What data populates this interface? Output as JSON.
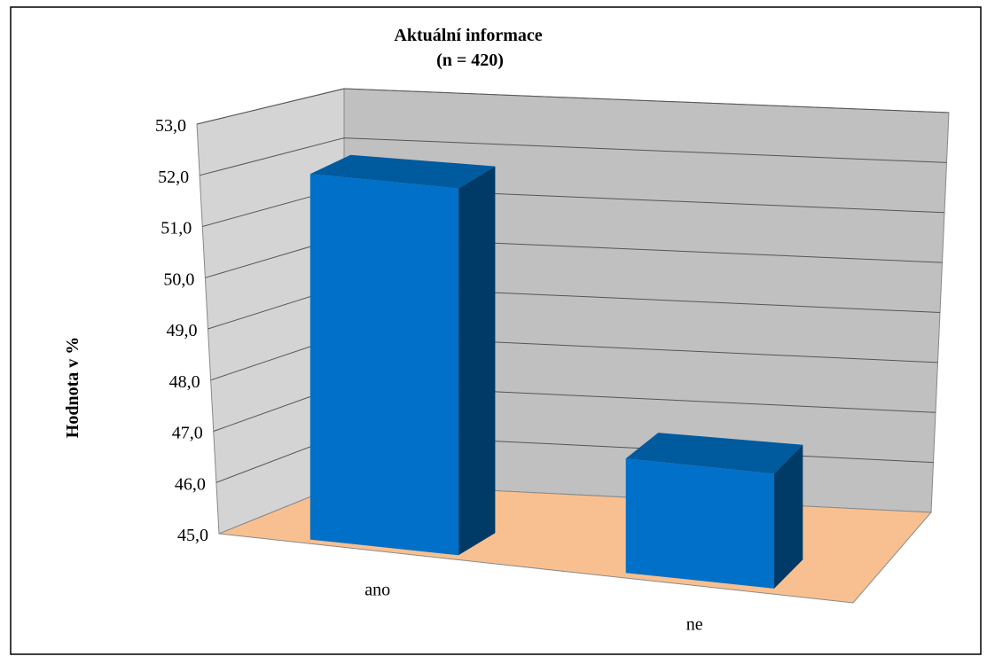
{
  "chart_data": {
    "type": "bar",
    "title": "Aktuální informace",
    "subtitle": "(n = 420)",
    "xlabel": "",
    "ylabel": "Hodnota v %",
    "categories": [
      "ano",
      "ne"
    ],
    "values": [
      52.4,
      47.3
    ],
    "ylim": [
      45.0,
      53.0
    ],
    "yticks": [
      "45,0",
      "46,0",
      "47,0",
      "48,0",
      "49,0",
      "50,0",
      "51,0",
      "52,0",
      "53,0"
    ],
    "grid": true,
    "legend": "none",
    "style": "3d-column",
    "colors": {
      "bar_front": "#0070C8",
      "bar_top": "#005A9E",
      "bar_side": "#003A66",
      "back_wall": "#C0C0C0",
      "side_wall": "#D4D4D4",
      "floor": "#F8C090",
      "gridline": "#555555"
    }
  }
}
